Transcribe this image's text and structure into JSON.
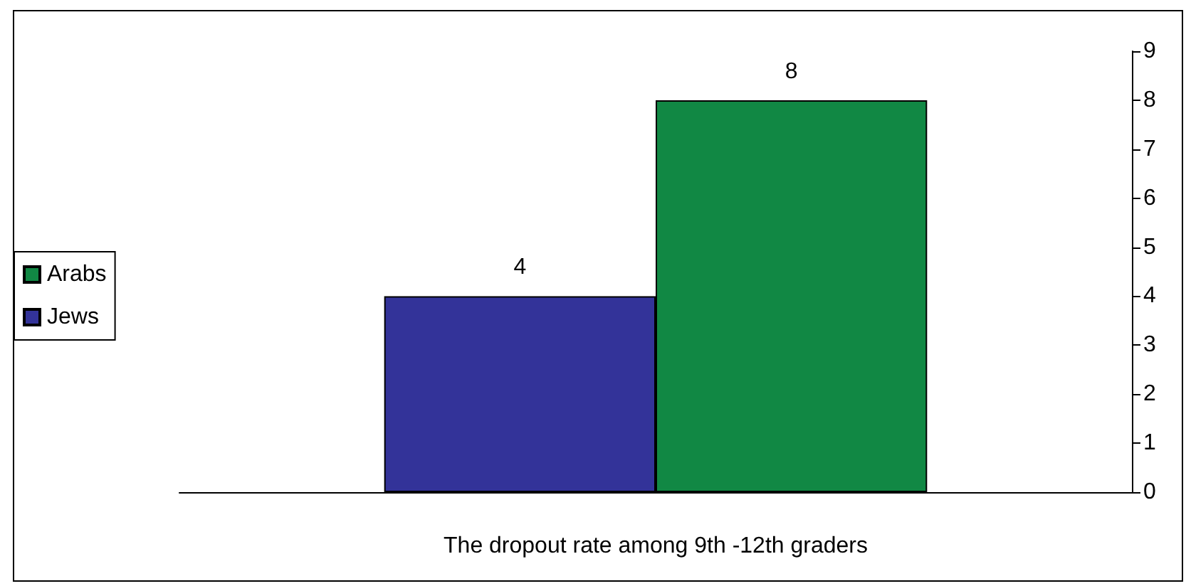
{
  "chart_data": {
    "type": "bar",
    "xlabel": "The dropout rate among 9th -12th graders",
    "categories": [
      null
    ],
    "series": [
      {
        "name": "Jews",
        "color": "#333399",
        "values": [
          4
        ]
      },
      {
        "name": "Arabs",
        "color": "#118844",
        "values": [
          8
        ]
      }
    ],
    "ylim": [
      0,
      9
    ],
    "yticks": [
      0,
      1,
      2,
      3,
      4,
      5,
      6,
      7,
      8,
      9
    ],
    "grid": false,
    "legend": "left",
    "data_labels": true
  }
}
